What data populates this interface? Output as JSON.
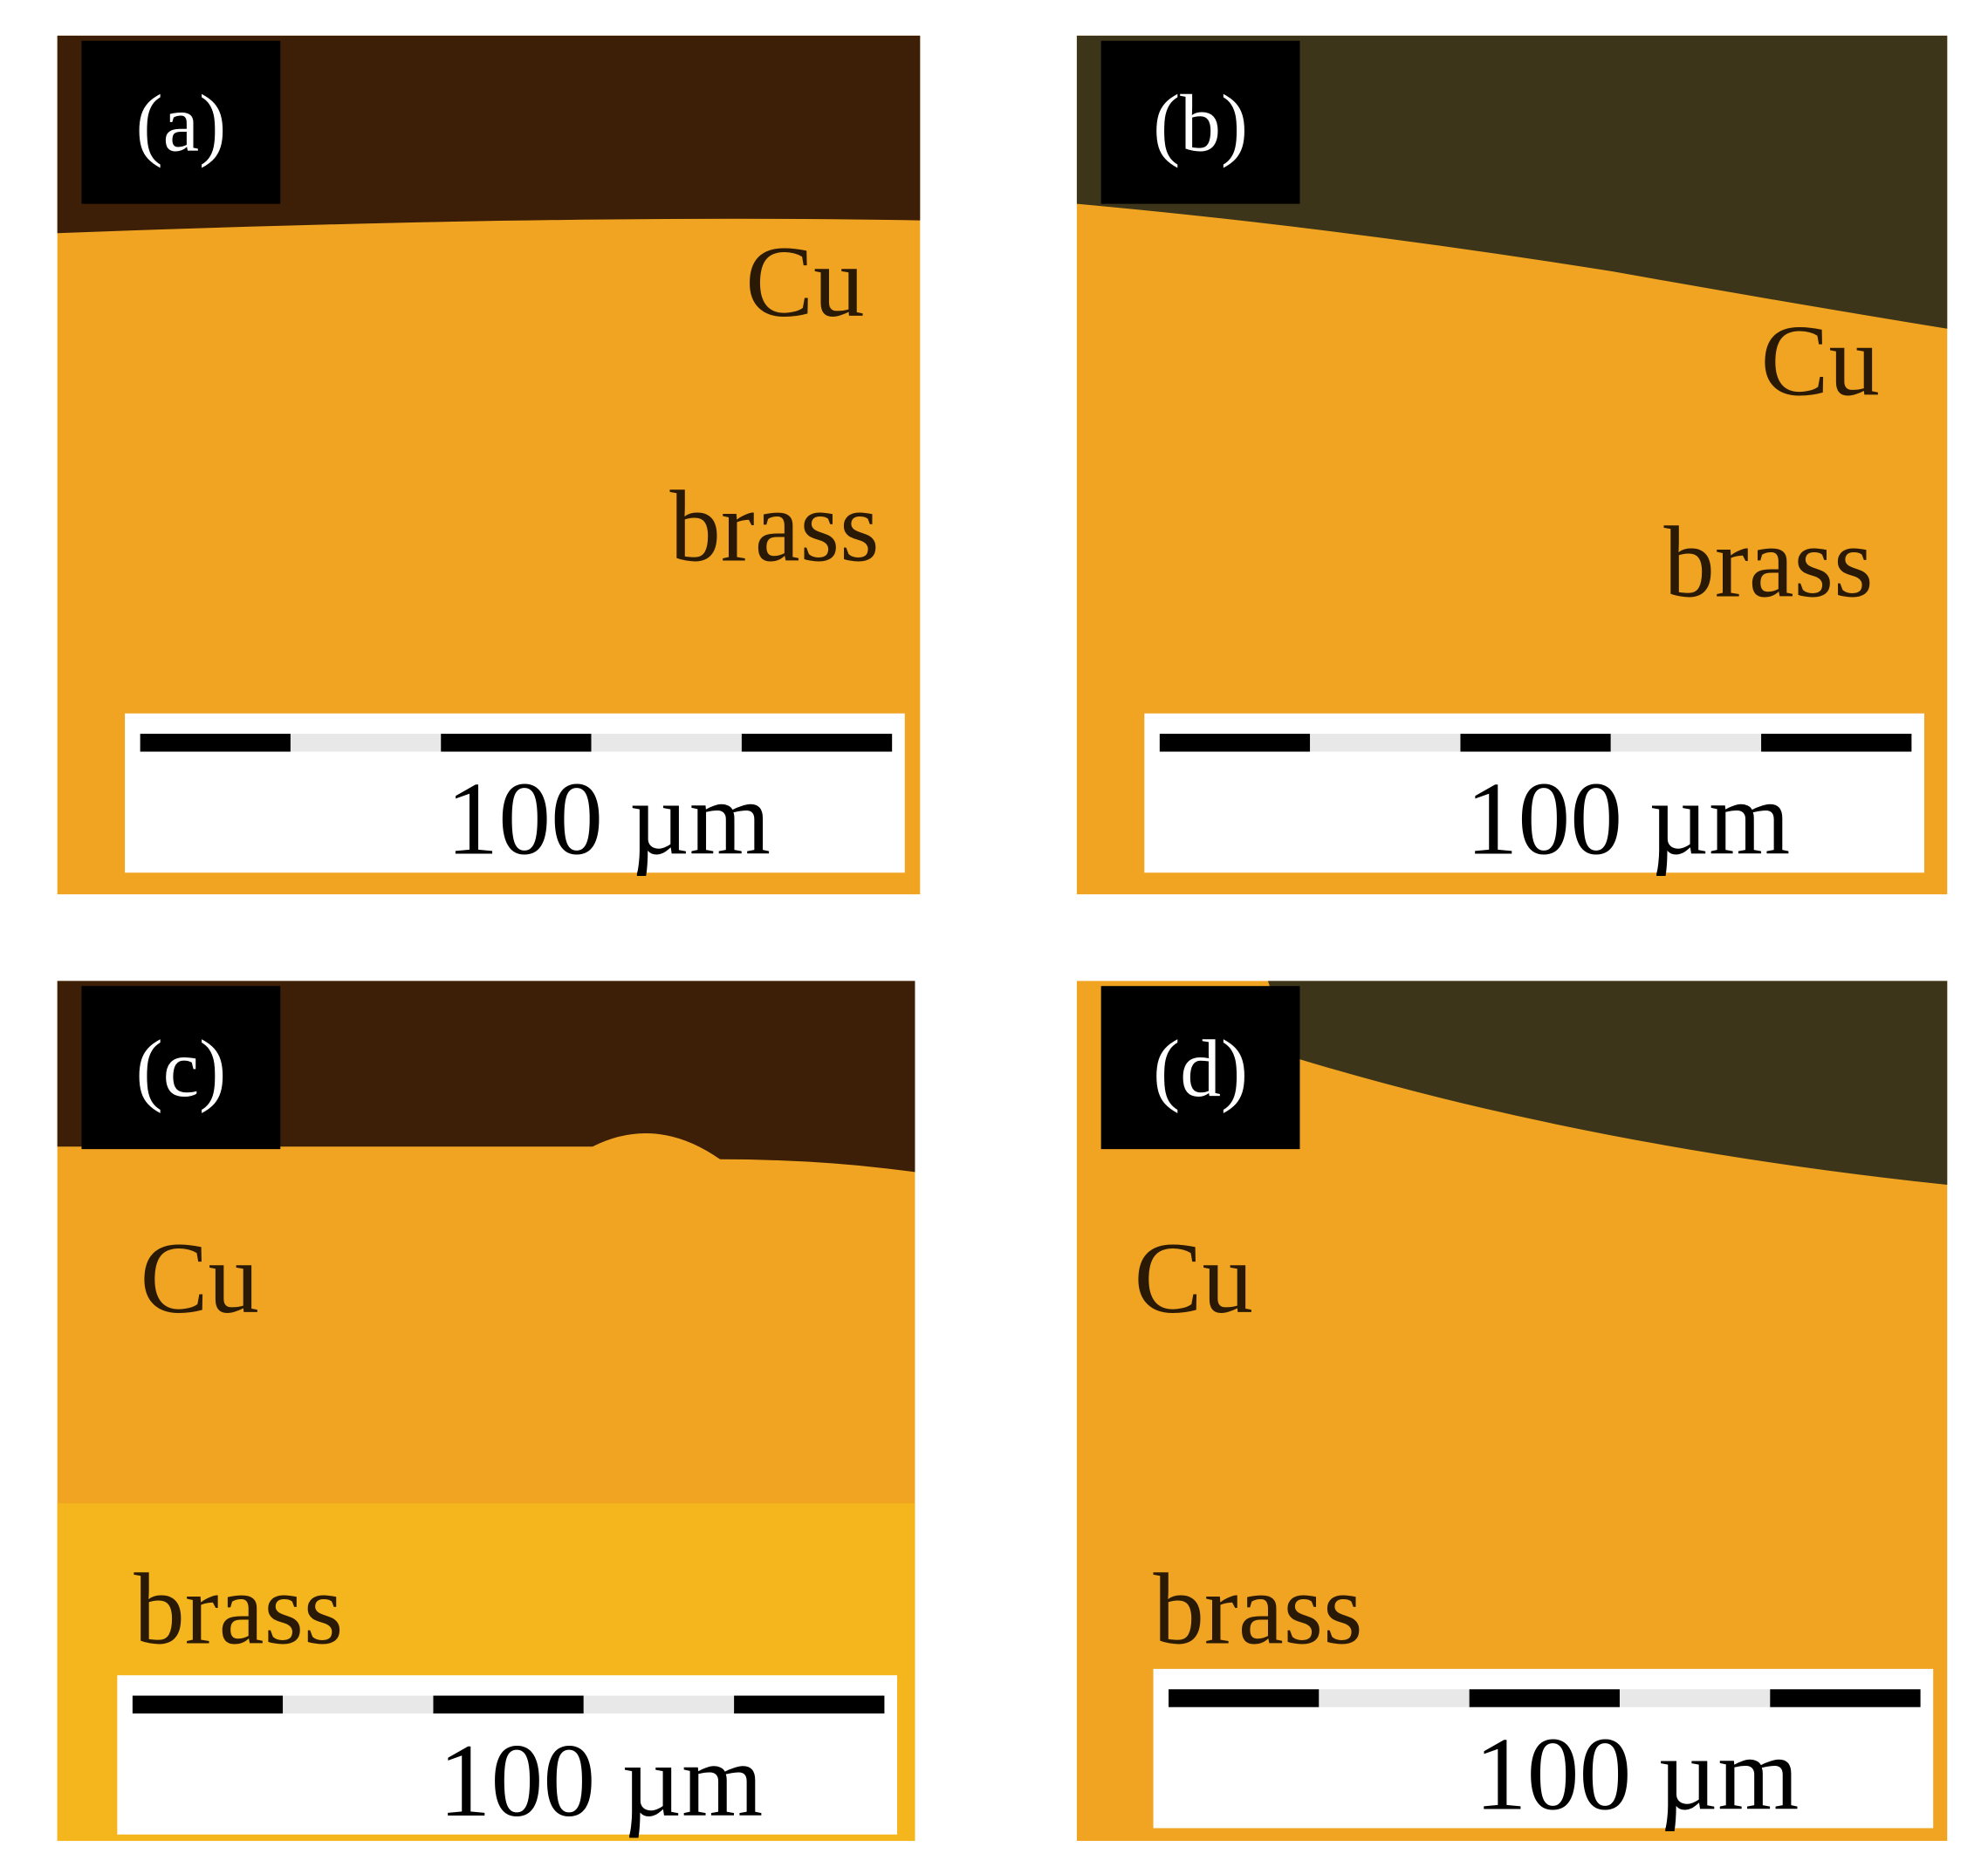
{
  "panels": [
    {
      "label": "(a)",
      "upper_layer": "Cu",
      "lower_layer": "brass",
      "scale_bar": "100 µm"
    },
    {
      "label": "(b)",
      "upper_layer": "Cu",
      "lower_layer": "brass",
      "scale_bar": "100 µm"
    },
    {
      "label": "(c)",
      "upper_layer": "Cu",
      "lower_layer": "brass",
      "scale_bar": "100 µm"
    },
    {
      "label": "(d)",
      "upper_layer": "Cu",
      "lower_layer": "brass",
      "scale_bar": "100 µm"
    }
  ]
}
